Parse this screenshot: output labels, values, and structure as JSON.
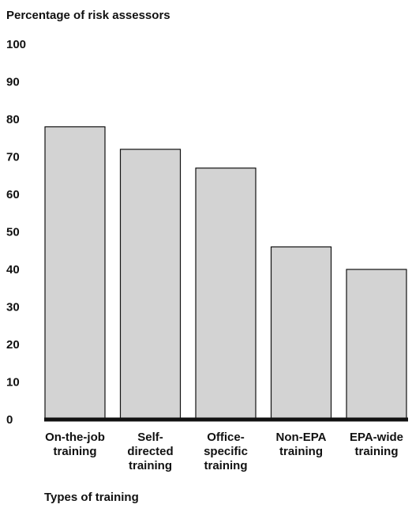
{
  "chart_data": {
    "type": "bar",
    "title": "",
    "ylabel": "Percentage of risk assessors",
    "xlabel": "Types of training",
    "ylim": [
      0,
      100
    ],
    "yticks": [
      0,
      10,
      20,
      30,
      40,
      50,
      60,
      70,
      80,
      90,
      100
    ],
    "categories": [
      [
        "On-the-job",
        "training"
      ],
      [
        "Self-",
        "directed",
        "training"
      ],
      [
        "Office-",
        "specific",
        "training"
      ],
      [
        "Non-EPA",
        "training"
      ],
      [
        "EPA-wide",
        "training"
      ]
    ],
    "values": [
      78,
      72,
      67,
      46,
      40
    ],
    "grid": false,
    "legend": "none",
    "bar_color": "#d3d3d3",
    "bar_edge_color": "#111111",
    "axis_color": "#111111"
  }
}
